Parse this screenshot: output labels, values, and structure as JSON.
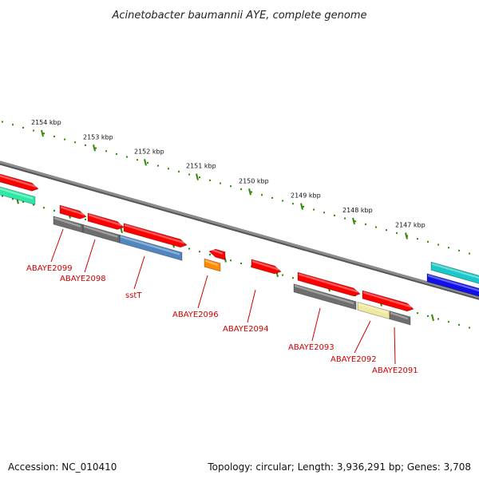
{
  "title": "Acinetobacter baumannii AYE, complete genome",
  "footer": {
    "accession": "Accession: NC_010410",
    "stats": "Topology: circular; Length: 3,936,291 bp; Genes: 3,708"
  },
  "colors": {
    "backbone": "#8c8c8c",
    "tick": "#2e8b00",
    "label": "#cc0000",
    "gene_red": "#ff0000",
    "gene_gray": "#6e6e6e",
    "gene_blue": "#4f86bf",
    "gene_orange": "#ff8c00",
    "gene_yellow": "#eee8a0",
    "gene_cyan": "#19c8c8",
    "gene_darkblue": "#1010e8",
    "gene_green": "#2ee8a8"
  },
  "chart_data": {
    "type": "genome-map",
    "topology": "circular",
    "length_bp": 3936291,
    "gene_count": 3708,
    "scale_ticks_kbp": [
      {
        "value": 2154,
        "label": "2154 kbp"
      },
      {
        "value": 2153,
        "label": "2153 kbp"
      },
      {
        "value": 2152,
        "label": "2152 kbp"
      },
      {
        "value": 2151,
        "label": "2151 kbp"
      },
      {
        "value": 2150,
        "label": "2150 kbp"
      },
      {
        "value": 2149,
        "label": "2149 kbp"
      },
      {
        "value": 2148,
        "label": "2148 kbp"
      },
      {
        "value": 2147,
        "label": "2147 kbp"
      }
    ],
    "gene_labels": [
      "ABAYE2099",
      "ABAYE2098",
      "sstT",
      "ABAYE2096",
      "ABAYE2094",
      "ABAYE2093",
      "ABAYE2092",
      "ABAYE2091"
    ]
  }
}
